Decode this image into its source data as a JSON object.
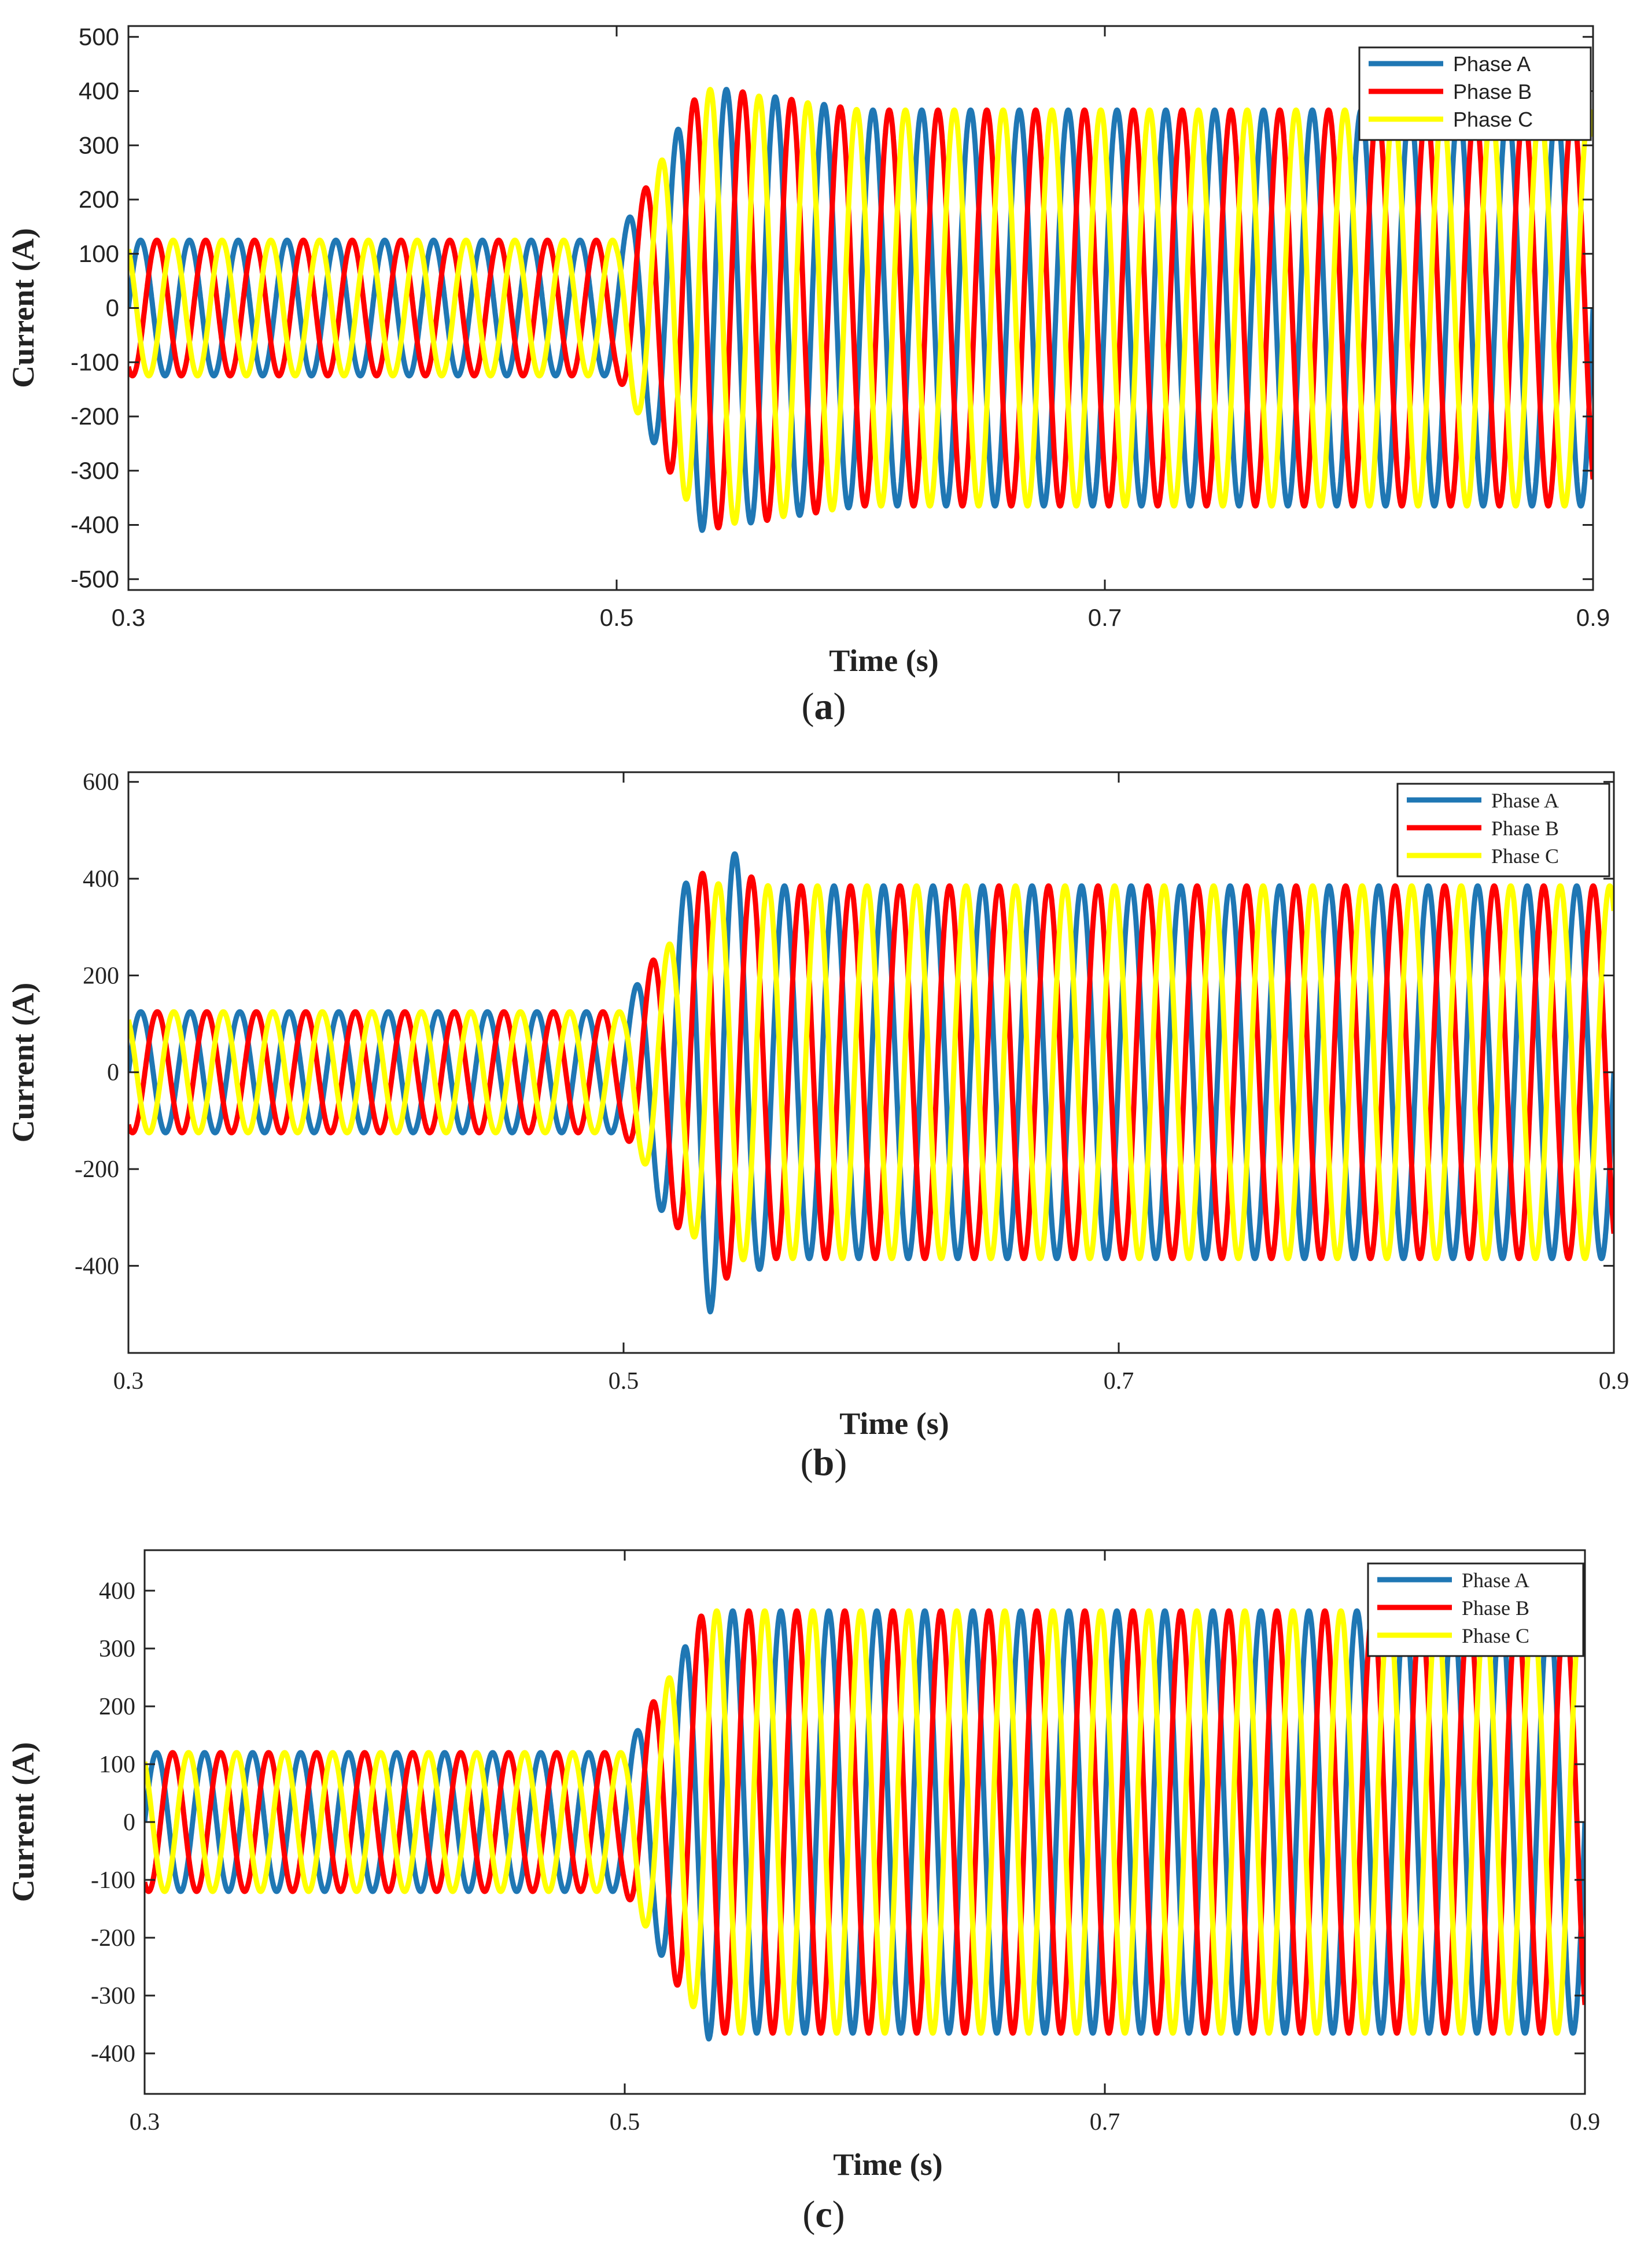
{
  "figure": {
    "panels": [
      {
        "caption_letter": "a",
        "caption_open": "(",
        "caption_close": ")"
      },
      {
        "caption_letter": "b",
        "caption_open": "(",
        "caption_close": ")"
      },
      {
        "caption_letter": "c",
        "caption_open": "(",
        "caption_close": ")"
      }
    ]
  },
  "colors": {
    "phase_a": "#1f77b4",
    "phase_b": "#ff0000",
    "phase_c": "#ffff00",
    "axis": "#222222"
  },
  "chart_data": [
    {
      "type": "line",
      "title": "",
      "xlabel": "Time (s)",
      "ylabel": "Current (A)",
      "xlim": [
        0.3,
        0.9
      ],
      "ylim": [
        -520,
        520
      ],
      "x_ticks": [
        0.3,
        0.5,
        0.7,
        0.9
      ],
      "y_ticks": [
        -500,
        -400,
        -300,
        -200,
        -100,
        0,
        100,
        200,
        300,
        400,
        500
      ],
      "grid": false,
      "legend_position": "top-right",
      "frequency_hz": 50,
      "step_time_s": 0.5,
      "series": [
        {
          "name": "Phase A",
          "phase_deg": 0,
          "amplitude_before": 125,
          "amplitude_after": 365,
          "peak_transient": 410,
          "settle_time_s": 0.6
        },
        {
          "name": "Phase B",
          "phase_deg": -120,
          "amplitude_before": 125,
          "amplitude_after": 365,
          "peak_transient": 410,
          "settle_time_s": 0.6
        },
        {
          "name": "Phase C",
          "phase_deg": 120,
          "amplitude_before": 125,
          "amplitude_after": 365,
          "peak_transient": 405,
          "settle_time_s": 0.6
        }
      ]
    },
    {
      "type": "line",
      "title": "",
      "xlabel": "Time (s)",
      "ylabel": "Current (A)",
      "xlim": [
        0.3,
        0.9
      ],
      "ylim": [
        -580,
        620
      ],
      "x_ticks": [
        0.3,
        0.5,
        0.7,
        0.9
      ],
      "y_ticks": [
        -400,
        -200,
        0,
        200,
        400,
        600
      ],
      "grid": false,
      "legend_position": "top-right",
      "frequency_hz": 50,
      "step_time_s": 0.5,
      "series": [
        {
          "name": "Phase A",
          "phase_deg": 0,
          "amplitude_before": 125,
          "amplitude_after": 385,
          "peak_transient": 495,
          "settle_time_s": 0.56
        },
        {
          "name": "Phase B",
          "phase_deg": -120,
          "amplitude_before": 125,
          "amplitude_after": 385,
          "peak_transient": 440,
          "settle_time_s": 0.56
        },
        {
          "name": "Phase C",
          "phase_deg": 120,
          "amplitude_before": 125,
          "amplitude_after": 385,
          "peak_transient": 390,
          "settle_time_s": 0.56
        }
      ]
    },
    {
      "type": "line",
      "title": "",
      "xlabel": "Time (s)",
      "ylabel": "Current (A)",
      "xlim": [
        0.3,
        0.9
      ],
      "ylim": [
        -470,
        470
      ],
      "x_ticks": [
        0.3,
        0.5,
        0.7,
        0.9
      ],
      "y_ticks": [
        -400,
        -300,
        -200,
        -100,
        0,
        100,
        200,
        300,
        400
      ],
      "grid": false,
      "legend_position": "top-right",
      "frequency_hz": 50,
      "step_time_s": 0.5,
      "series": [
        {
          "name": "Phase A",
          "phase_deg": 0,
          "amplitude_before": 120,
          "amplitude_after": 365,
          "peak_transient": 375,
          "settle_time_s": 0.54
        },
        {
          "name": "Phase B",
          "phase_deg": -120,
          "amplitude_before": 120,
          "amplitude_after": 365,
          "peak_transient": 380,
          "settle_time_s": 0.54
        },
        {
          "name": "Phase C",
          "phase_deg": 120,
          "amplitude_before": 120,
          "amplitude_after": 365,
          "peak_transient": 365,
          "settle_time_s": 0.54
        }
      ]
    }
  ]
}
